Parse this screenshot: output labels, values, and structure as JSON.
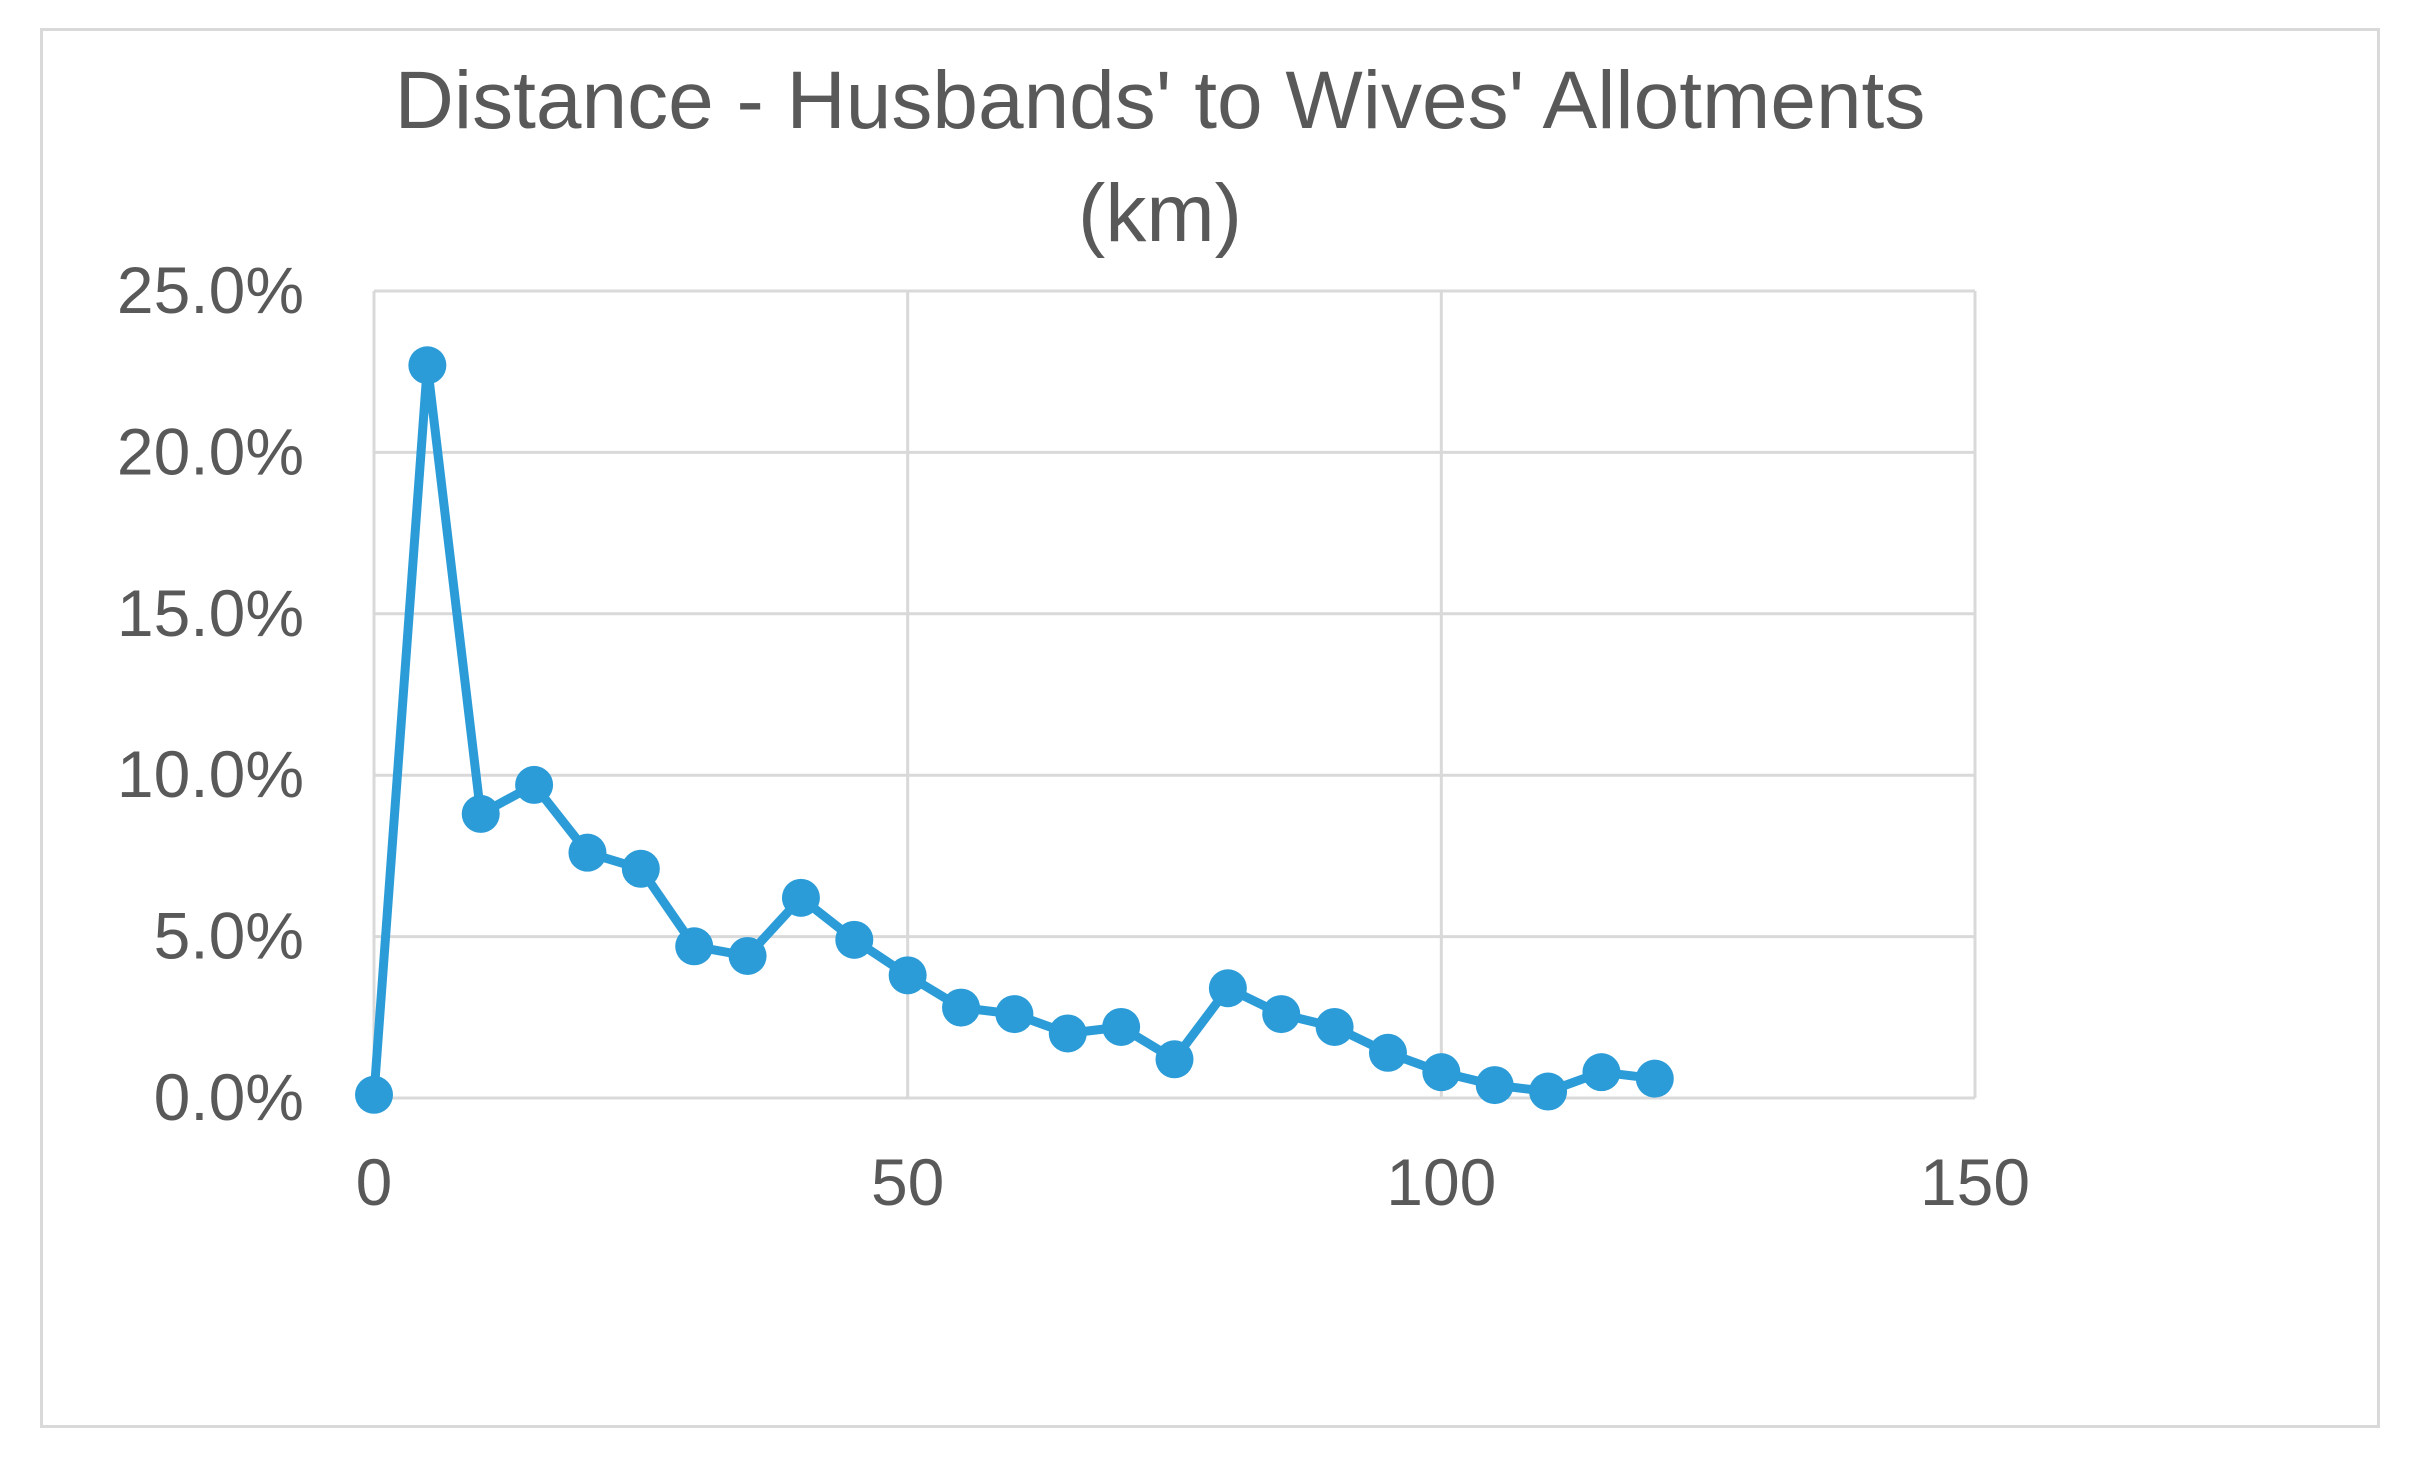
{
  "chart_data": {
    "type": "scatter",
    "title_lines": [
      "Distance - Husbands' to Wives' Allotments",
      "(km)"
    ],
    "xlabel": "",
    "ylabel": "",
    "xlim": [
      0,
      150
    ],
    "ylim": [
      0,
      0.25
    ],
    "x_ticks": [
      0,
      50,
      100,
      150
    ],
    "x_tick_labels": [
      "0",
      "50",
      "100",
      "150"
    ],
    "y_ticks": [
      0,
      0.05,
      0.1,
      0.15,
      0.2,
      0.25
    ],
    "y_tick_labels": [
      "0.0%",
      "5.0%",
      "10.0%",
      "15.0%",
      "20.0%",
      "25.0%"
    ],
    "grid": true,
    "legend": "none",
    "series": [
      {
        "color": "#2b9cd8",
        "line": true,
        "markers": true,
        "x": [
          0,
          5,
          10,
          15,
          20,
          25,
          30,
          35,
          40,
          45,
          50,
          55,
          60,
          65,
          70,
          75,
          80,
          85,
          90,
          95,
          100,
          105,
          110,
          115,
          120
        ],
        "y": [
          0.001,
          0.227,
          0.088,
          0.097,
          0.076,
          0.071,
          0.047,
          0.044,
          0.062,
          0.049,
          0.038,
          0.028,
          0.026,
          0.02,
          0.022,
          0.012,
          0.034,
          0.026,
          0.022,
          0.014,
          0.008,
          0.004,
          0.002,
          0.008,
          0.006
        ]
      }
    ]
  }
}
